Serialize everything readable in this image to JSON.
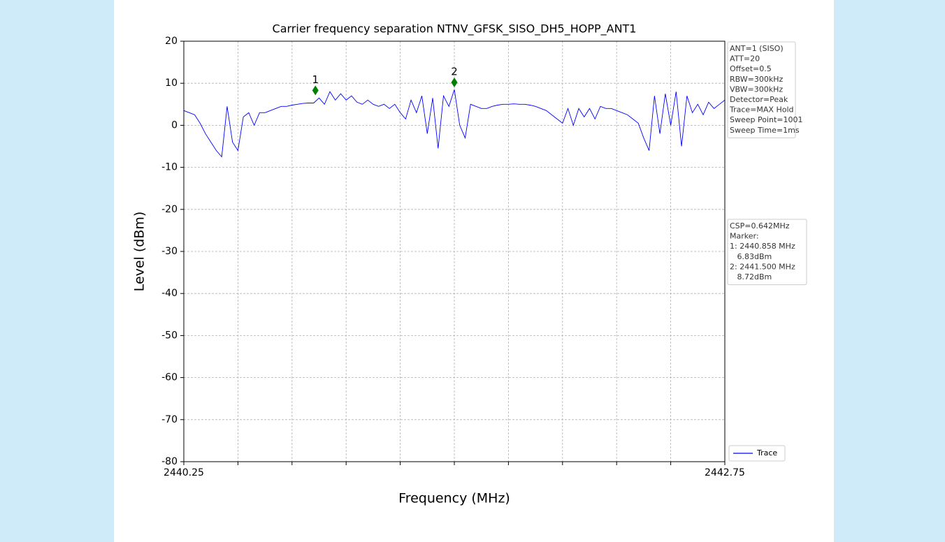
{
  "chart_data": {
    "type": "line",
    "title": "Carrier frequency separation NTNV_GFSK_SISO_DH5_HOPP_ANT1",
    "x_label": "Frequency (MHz)",
    "y_label": "Level (dBm)",
    "xlim": [
      2440.25,
      2442.75
    ],
    "xticks": [
      2440.25,
      2442.75
    ],
    "xminorticks": [
      2440.5,
      2440.75,
      2441,
      2441.25,
      2441.5,
      2441.75,
      2442,
      2442.25,
      2442.5
    ],
    "ylim": [
      -80,
      20
    ],
    "yticks": [
      -80,
      -70,
      -60,
      -50,
      -40,
      -30,
      -20,
      -10,
      0,
      10,
      20
    ],
    "grid": true,
    "legend": "lower right",
    "x": [
      2440.25,
      2440.275,
      2440.3,
      2440.325,
      2440.35,
      2440.375,
      2440.4,
      2440.425,
      2440.45,
      2440.475,
      2440.5,
      2440.525,
      2440.55,
      2440.575,
      2440.6,
      2440.625,
      2440.65,
      2440.675,
      2440.7,
      2440.725,
      2440.75,
      2440.775,
      2440.8,
      2440.825,
      2440.85,
      2440.875,
      2440.9,
      2440.925,
      2440.95,
      2440.975,
      2441,
      2441.025,
      2441.05,
      2441.075,
      2441.1,
      2441.125,
      2441.15,
      2441.175,
      2441.2,
      2441.225,
      2441.25,
      2441.275,
      2441.3,
      2441.325,
      2441.35,
      2441.375,
      2441.4,
      2441.425,
      2441.45,
      2441.475,
      2441.5,
      2441.525,
      2441.55,
      2441.575,
      2441.6,
      2441.625,
      2441.65,
      2441.675,
      2441.7,
      2441.725,
      2441.75,
      2441.775,
      2441.8,
      2441.825,
      2441.85,
      2441.875,
      2441.9,
      2441.925,
      2441.95,
      2441.975,
      2442,
      2442.025,
      2442.05,
      2442.075,
      2442.1,
      2442.125,
      2442.15,
      2442.175,
      2442.2,
      2442.225,
      2442.25,
      2442.275,
      2442.3,
      2442.325,
      2442.35,
      2442.375,
      2442.4,
      2442.425,
      2442.45,
      2442.475,
      2442.5,
      2442.525,
      2442.55,
      2442.575,
      2442.6,
      2442.625,
      2442.65,
      2442.675,
      2442.7,
      2442.725,
      2442.75
    ],
    "series": [
      {
        "name": "Trace",
        "color": "#0000ff",
        "values": [
          3.5,
          3,
          2.5,
          0.5,
          -2,
          -4,
          -6,
          -7.5,
          4.5,
          -4,
          -6,
          2,
          3,
          0,
          3,
          3,
          3.5,
          4,
          4.5,
          4.5,
          4.8,
          5,
          5.2,
          5.3,
          5.3,
          6.5,
          5,
          8,
          6,
          7.5,
          6,
          7,
          5.5,
          5,
          6,
          5,
          4.5,
          5,
          4,
          5,
          3,
          1.5,
          6,
          3,
          7,
          -2,
          6.5,
          -5.5,
          7,
          4.5,
          8.5,
          0,
          -3,
          5,
          4.5,
          4,
          4,
          4.5,
          4.8,
          5,
          5,
          5.1,
          5,
          5,
          4.8,
          4.5,
          4,
          3.5,
          2.5,
          1.5,
          0.5,
          4,
          0,
          4,
          2,
          4,
          1.5,
          4.5,
          4,
          4,
          3.5,
          3,
          2.5,
          1.5,
          0.5,
          -3,
          -6,
          7,
          -2,
          7.5,
          0,
          8,
          -5,
          7,
          3,
          5,
          2.5,
          5.5,
          4,
          5,
          6
        ]
      }
    ],
    "markers": [
      {
        "label": "1",
        "x": 2440.858,
        "y": 8.3,
        "color": "#008000"
      },
      {
        "label": "2",
        "x": 2441.5,
        "y": 10.2,
        "color": "#008000"
      }
    ],
    "settings_box": [
      "ANT=1 (SISO)",
      "ATT=20",
      "Offset=0.5",
      "RBW=300kHz",
      "VBW=300kHz",
      "Detector=Peak",
      "Trace=MAX Hold",
      "Sweep Point=1001",
      "Sweep Time=1ms"
    ],
    "marker_box": [
      "CSP=0.642MHz",
      "Marker:",
      "1: 2440.858 MHz",
      "   6.83dBm",
      "2: 2441.500 MHz",
      "   8.72dBm"
    ]
  }
}
